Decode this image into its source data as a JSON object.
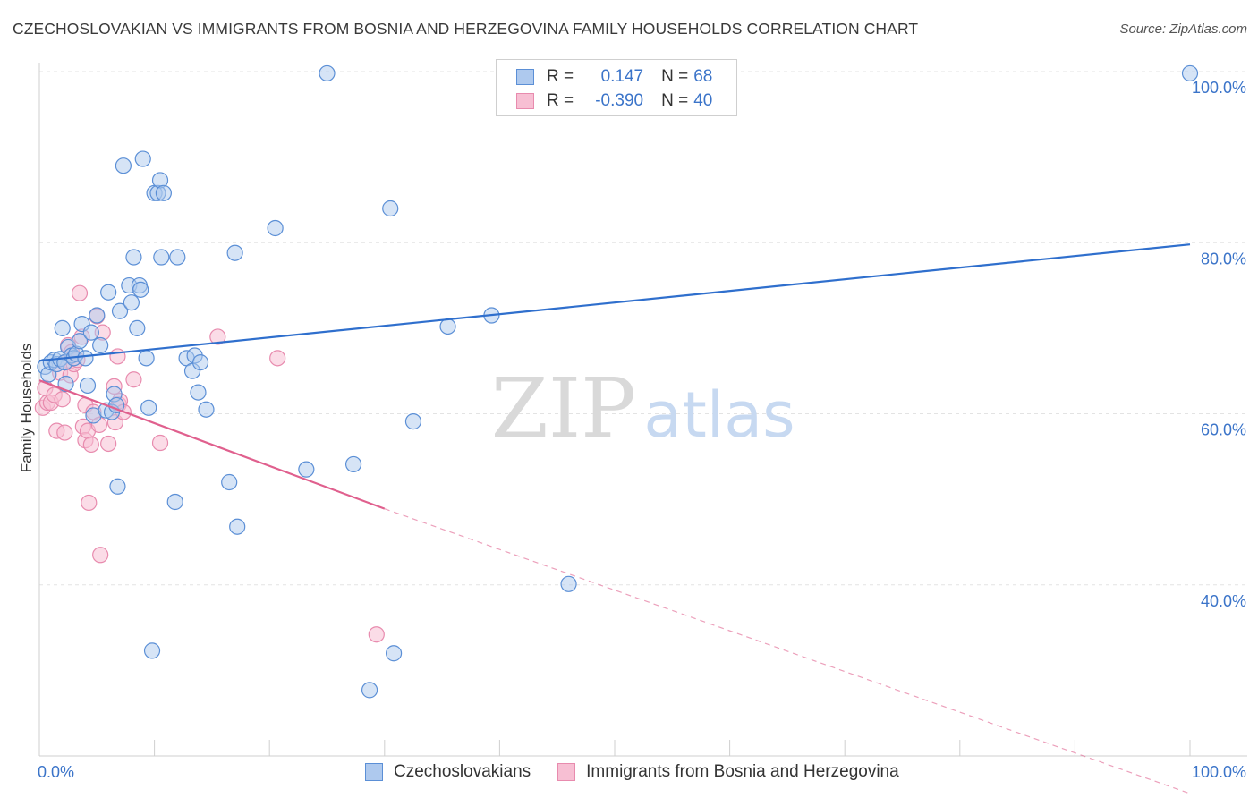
{
  "title": "CZECHOSLOVAKIAN VS IMMIGRANTS FROM BOSNIA AND HERZEGOVINA FAMILY HOUSEHOLDS CORRELATION CHART",
  "source": "Source: ZipAtlas.com",
  "watermark": {
    "zip": "ZIP",
    "atlas": "atlas"
  },
  "legend": {
    "rows": [
      {
        "r_label": "R =",
        "r_value": "0.147",
        "n_label": "N =",
        "n_value": "68"
      },
      {
        "r_label": "R =",
        "r_value": "-0.390",
        "n_label": "N =",
        "n_value": "40"
      }
    ]
  },
  "bottom_legend": [
    "Czechoslovakians",
    "Immigrants from Bosnia and Herzegovina"
  ],
  "chart_data": {
    "type": "scatter",
    "xlabel": "",
    "ylabel": "Family Households",
    "xlim": [
      0,
      100
    ],
    "ylim": [
      20,
      100
    ],
    "x_tick_labels": [
      "0.0%",
      "100.0%"
    ],
    "y_tick_labels": [
      "40.0%",
      "60.0%",
      "80.0%",
      "100.0%"
    ],
    "y_ticks": [
      40,
      60,
      80,
      100
    ],
    "grid": "horizontal dashed",
    "legend_position": "top-center",
    "colors": {
      "blue_fill": "#aec9ee",
      "blue_edge": "#5b8fd6",
      "blue_line": "#2f6fcd",
      "pink_fill": "#f7bfd3",
      "pink_edge": "#e88bae",
      "pink_line": "#e0608e"
    },
    "series": [
      {
        "name": "Czechoslovakians",
        "points": [
          [
            0.5,
            65.5
          ],
          [
            0.8,
            64.6
          ],
          [
            1,
            66
          ],
          [
            1.3,
            66.3
          ],
          [
            1.5,
            65.8
          ],
          [
            1.8,
            66.4
          ],
          [
            2,
            70
          ],
          [
            2.2,
            66
          ],
          [
            2.3,
            63.5
          ],
          [
            2.5,
            67.8
          ],
          [
            2.8,
            66.8
          ],
          [
            3,
            66.5
          ],
          [
            3.2,
            67
          ],
          [
            3.5,
            68.5
          ],
          [
            3.7,
            70.5
          ],
          [
            4,
            66.5
          ],
          [
            4.2,
            63.3
          ],
          [
            4.5,
            69.5
          ],
          [
            4.7,
            59.8
          ],
          [
            5,
            71.5
          ],
          [
            5.3,
            68
          ],
          [
            5.8,
            60.4
          ],
          [
            6,
            74.2
          ],
          [
            6.3,
            60.2
          ],
          [
            6.5,
            62.3
          ],
          [
            6.7,
            61
          ],
          [
            6.8,
            51.5
          ],
          [
            7,
            72
          ],
          [
            7.3,
            89
          ],
          [
            7.8,
            75
          ],
          [
            8,
            73
          ],
          [
            8.2,
            78.3
          ],
          [
            8.5,
            70
          ],
          [
            8.7,
            75
          ],
          [
            8.8,
            74.5
          ],
          [
            9,
            89.8
          ],
          [
            9.3,
            66.5
          ],
          [
            9.5,
            60.7
          ],
          [
            9.8,
            32.3
          ],
          [
            10,
            85.8
          ],
          [
            10.3,
            85.8
          ],
          [
            10.5,
            87.3
          ],
          [
            10.6,
            78.3
          ],
          [
            10.8,
            85.8
          ],
          [
            11.8,
            49.7
          ],
          [
            12,
            78.3
          ],
          [
            12.8,
            66.5
          ],
          [
            13.3,
            65
          ],
          [
            13.5,
            66.8
          ],
          [
            13.8,
            62.5
          ],
          [
            14,
            66
          ],
          [
            14.5,
            60.5
          ],
          [
            16.5,
            52
          ],
          [
            17,
            78.8
          ],
          [
            17.2,
            46.8
          ],
          [
            20.5,
            81.7
          ],
          [
            23.2,
            53.5
          ],
          [
            25,
            99.8
          ],
          [
            27.3,
            54.1
          ],
          [
            28.7,
            27.7
          ],
          [
            30.5,
            84
          ],
          [
            30.8,
            32
          ],
          [
            32.5,
            59.1
          ],
          [
            35.5,
            70.2
          ],
          [
            39.3,
            71.5
          ],
          [
            46,
            40.1
          ],
          [
            50.5,
            100
          ],
          [
            100,
            99.8
          ]
        ]
      },
      {
        "name": "Immigrants from Bosnia and Herzegovina",
        "points": [
          [
            0.3,
            60.7
          ],
          [
            0.5,
            63
          ],
          [
            0.7,
            61.3
          ],
          [
            1,
            61.3
          ],
          [
            1.3,
            62.2
          ],
          [
            1.5,
            58
          ],
          [
            1.8,
            64.8
          ],
          [
            2,
            61.7
          ],
          [
            2.2,
            57.8
          ],
          [
            2.3,
            66
          ],
          [
            2.5,
            68
          ],
          [
            2.7,
            64.5
          ],
          [
            2.8,
            67.2
          ],
          [
            3,
            65.8
          ],
          [
            3.3,
            66.3
          ],
          [
            3.5,
            74.1
          ],
          [
            3.7,
            69
          ],
          [
            3.8,
            58.5
          ],
          [
            4,
            61
          ],
          [
            4,
            56.9
          ],
          [
            4.2,
            58
          ],
          [
            4.3,
            49.6
          ],
          [
            4.5,
            56.4
          ],
          [
            4.7,
            60.2
          ],
          [
            5,
            71.4
          ],
          [
            5.2,
            58.7
          ],
          [
            5.3,
            43.5
          ],
          [
            5.5,
            69.5
          ],
          [
            6,
            56.5
          ],
          [
            6.5,
            63.2
          ],
          [
            6.6,
            59
          ],
          [
            6.8,
            66.7
          ],
          [
            6.9,
            61.1
          ],
          [
            7,
            61.5
          ],
          [
            7.3,
            60.2
          ],
          [
            8.2,
            64
          ],
          [
            10.5,
            56.6
          ],
          [
            15.5,
            69
          ],
          [
            20.7,
            66.5
          ],
          [
            29.3,
            34.2
          ]
        ]
      }
    ],
    "trend_lines": [
      {
        "series": "Czechoslovakians",
        "x": [
          0,
          100
        ],
        "y": [
          66.2,
          79.8
        ],
        "style": "solid"
      },
      {
        "series": "Immigrants from Bosnia and Herzegovina",
        "x": [
          0,
          30
        ],
        "y": [
          63.9,
          48.9
        ],
        "style": "solid"
      },
      {
        "series": "Immigrants from Bosnia and Herzegovina",
        "x": [
          30,
          100
        ],
        "y": [
          48.9,
          15.6
        ],
        "style": "dashed"
      }
    ]
  }
}
